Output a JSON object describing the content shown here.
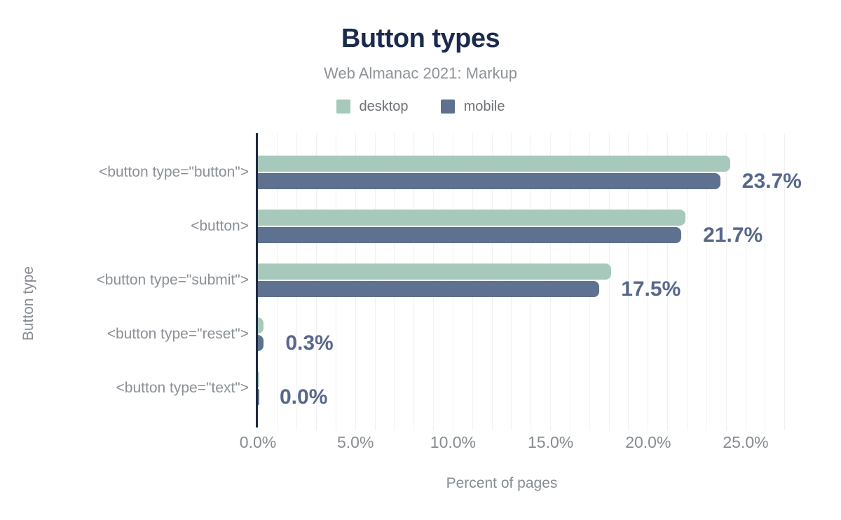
{
  "chart_data": {
    "type": "bar",
    "orientation": "horizontal",
    "title": "Button types",
    "subtitle": "Web Almanac 2021: Markup",
    "categories": [
      "<button type=\"button\">",
      "<button>",
      "<button type=\"submit\">",
      "<button type=\"reset\">",
      "<button type=\"text\">"
    ],
    "series": [
      {
        "name": "desktop",
        "color": "#a7c9bb",
        "values": [
          24.2,
          21.9,
          18.1,
          0.3,
          0.0
        ]
      },
      {
        "name": "mobile",
        "color": "#5f7190",
        "values": [
          23.7,
          21.7,
          17.5,
          0.3,
          0.0
        ]
      }
    ],
    "value_labels": [
      "23.7%",
      "21.7%",
      "17.5%",
      "0.3%",
      "0.0%"
    ],
    "xlabel": "Percent of pages",
    "ylabel": "Button type",
    "x_ticks": [
      {
        "value": 0,
        "label": "0.0%"
      },
      {
        "value": 5,
        "label": "5.0%"
      },
      {
        "value": 10,
        "label": "10.0%"
      },
      {
        "value": 15,
        "label": "15.0%"
      },
      {
        "value": 20,
        "label": "20.0%"
      },
      {
        "value": 25,
        "label": "25.0%"
      }
    ],
    "xlim": [
      0,
      27
    ],
    "grid": {
      "vertical": true,
      "interval_percent": 1
    },
    "legend_position": "top"
  },
  "colors": {
    "title": "#1c2b4d",
    "subtitle": "#8e9299",
    "value_label": "#57678c",
    "axis_line": "#1e2a40",
    "grid_line": "#f1f1f3",
    "muted_text": "#868b92"
  }
}
